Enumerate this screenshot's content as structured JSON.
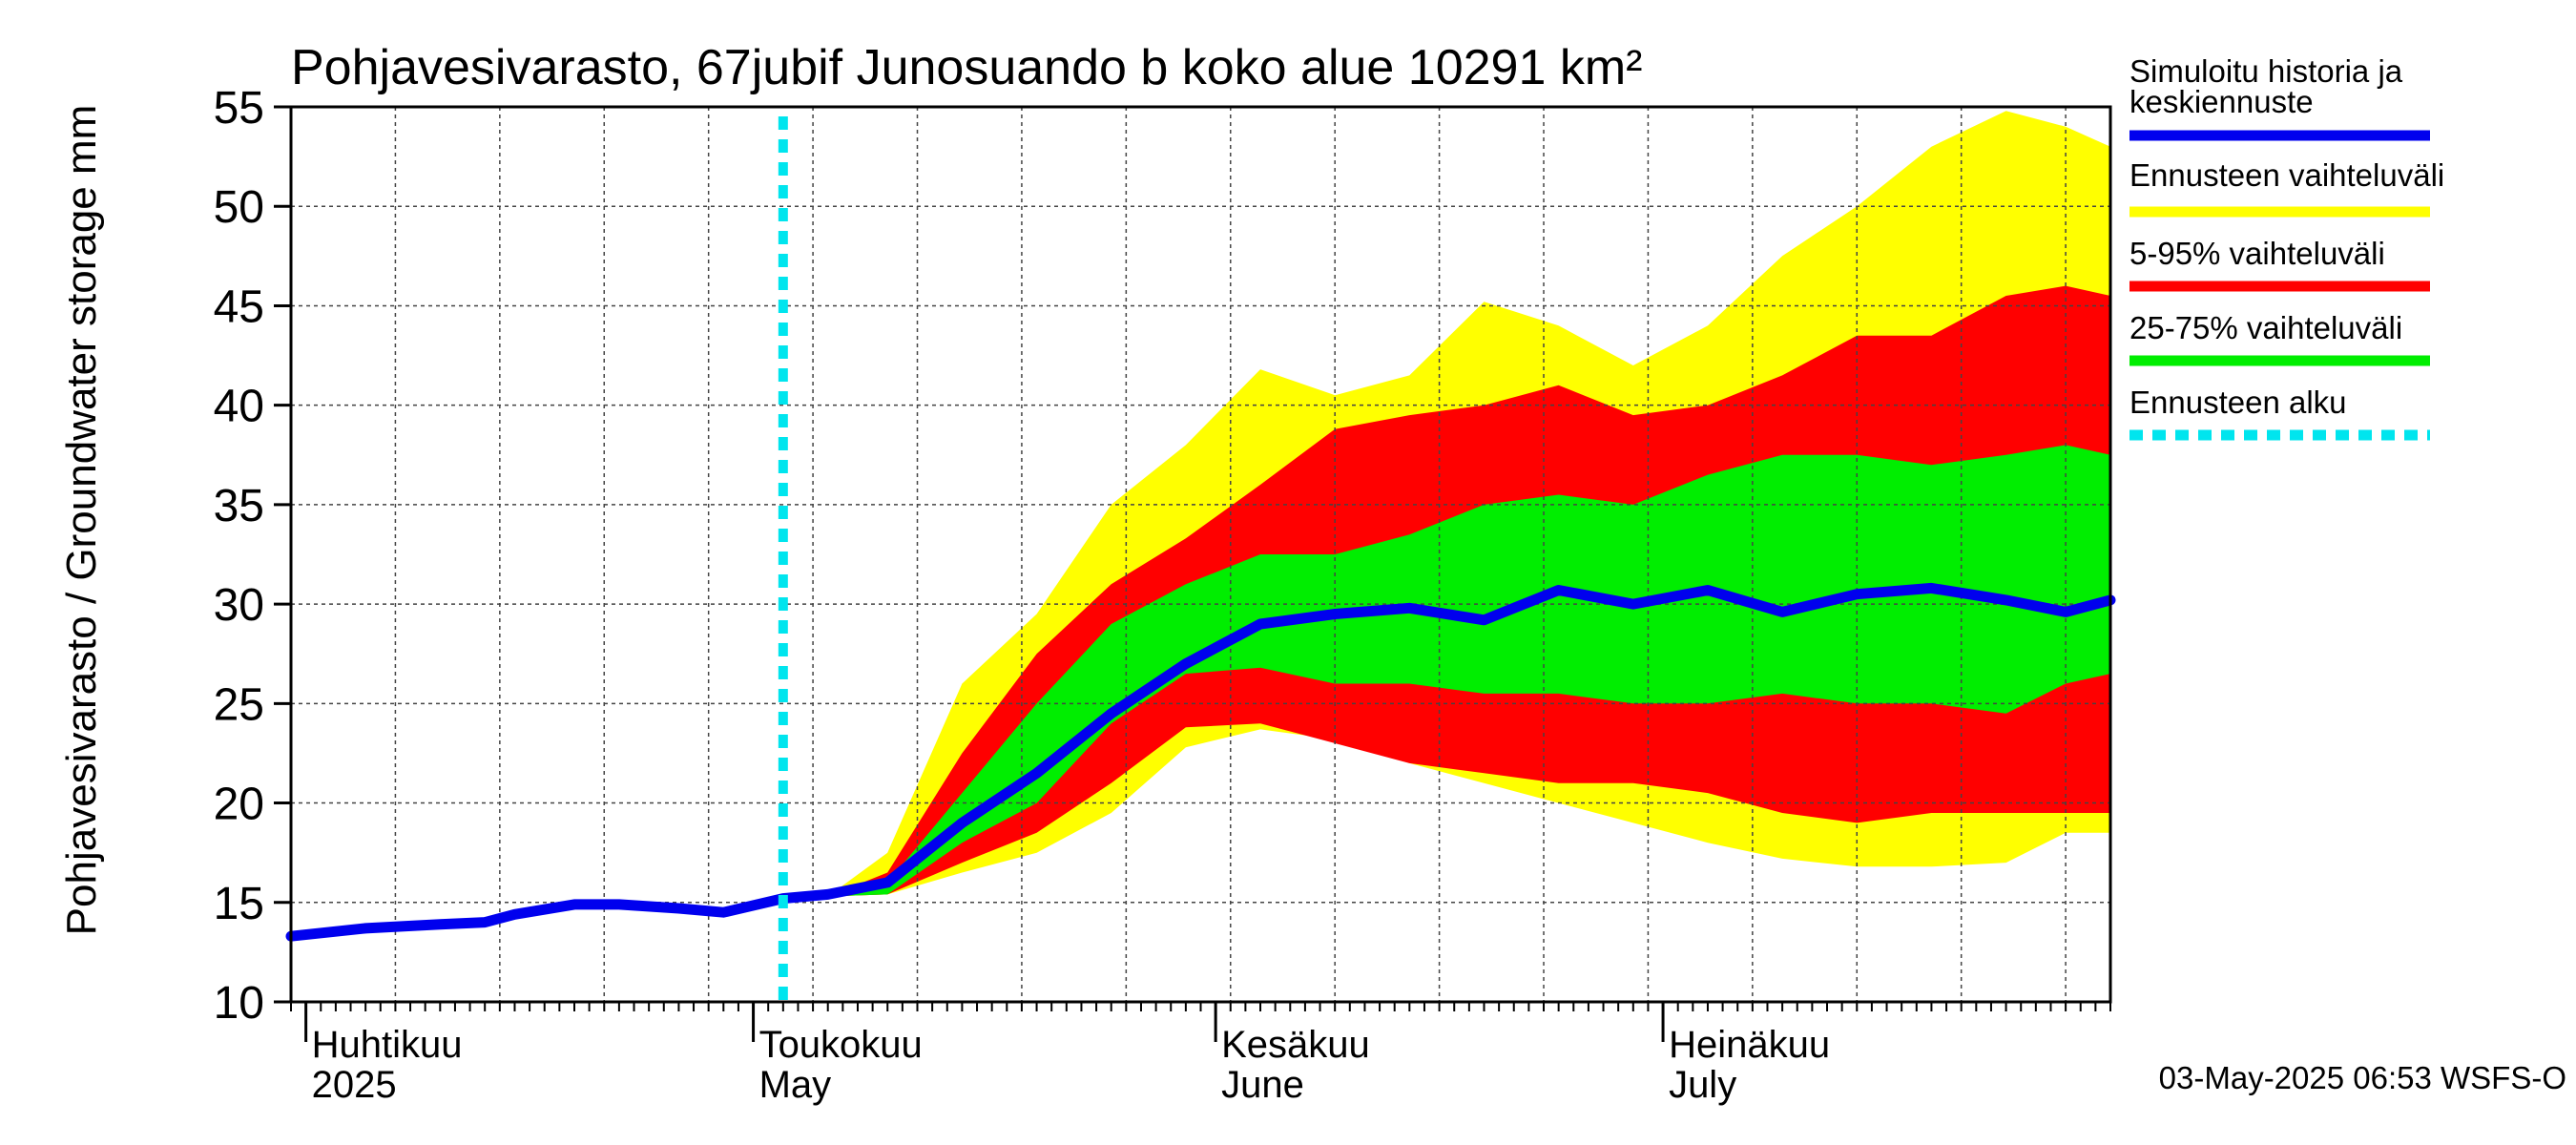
{
  "chart_data": {
    "type": "area",
    "title": "Pohjavesivarasto, 67jubif Junosuando b koko alue 10291 km²",
    "ylabel": "Pohjavesivarasto / Groundwater storage   mm",
    "ylim": [
      10,
      55
    ],
    "yticks": [
      10,
      15,
      20,
      25,
      30,
      35,
      40,
      45,
      50,
      55
    ],
    "xlim": [
      "2025-03-31",
      "2025-07-31"
    ],
    "grid": true,
    "legend_position": "right",
    "forecast_start": "2025-05-03",
    "x_month_labels": [
      {
        "date": "2025-04-01",
        "line1": "Huhtikuu",
        "line2": "2025"
      },
      {
        "date": "2025-05-01",
        "line1": "Toukokuu",
        "line2": "May"
      },
      {
        "date": "2025-06-01",
        "line1": "Kesäkuu",
        "line2": "June"
      },
      {
        "date": "2025-07-01",
        "line1": "Heinäkuu",
        "line2": "July"
      }
    ],
    "history_series": {
      "name": "Simuloitu historia ja keskiennuste",
      "color": "#0000ee",
      "x": [
        "2025-03-31",
        "2025-04-05",
        "2025-04-10",
        "2025-04-13",
        "2025-04-15",
        "2025-04-19",
        "2025-04-22",
        "2025-04-26",
        "2025-04-29",
        "2025-05-03",
        "2025-05-06"
      ],
      "y": [
        13.3,
        13.7,
        13.9,
        14.0,
        14.4,
        14.9,
        14.9,
        14.7,
        14.5,
        15.2,
        15.4
      ]
    },
    "forecast_x": [
      "2025-05-06",
      "2025-05-10",
      "2025-05-15",
      "2025-05-20",
      "2025-05-25",
      "2025-05-30",
      "2025-06-04",
      "2025-06-09",
      "2025-06-14",
      "2025-06-19",
      "2025-06-24",
      "2025-06-29",
      "2025-07-04",
      "2025-07-09",
      "2025-07-14",
      "2025-07-19",
      "2025-07-24",
      "2025-07-28",
      "2025-07-31"
    ],
    "series": [
      {
        "name": "Ennusteen vaihteluväli",
        "color": "#ffff00",
        "role": "band",
        "lower": [
          15.3,
          15.4,
          16.5,
          17.5,
          19.5,
          22.8,
          23.7,
          23.2,
          22.0,
          21.0,
          20.0,
          19.0,
          18.0,
          17.2,
          16.8,
          16.8,
          17.0,
          18.5,
          18.5
        ],
        "upper": [
          15.3,
          17.5,
          26.0,
          29.5,
          35.0,
          38.0,
          41.8,
          40.5,
          41.5,
          45.2,
          44.0,
          42.0,
          44.0,
          47.5,
          50.0,
          53.0,
          54.8,
          54.0,
          53.0
        ]
      },
      {
        "name": "5-95% vaihteluväli",
        "color": "#ff0000",
        "role": "band",
        "lower": [
          15.3,
          15.4,
          17.0,
          18.5,
          21.0,
          23.8,
          24.0,
          23.0,
          22.0,
          21.5,
          21.0,
          21.0,
          20.5,
          19.5,
          19.0,
          19.5,
          19.5,
          19.5,
          19.5
        ],
        "upper": [
          15.3,
          16.5,
          22.5,
          27.5,
          31.0,
          33.3,
          36.0,
          38.8,
          39.5,
          40.0,
          41.0,
          39.5,
          40.0,
          41.5,
          43.5,
          43.5,
          45.5,
          46.0,
          45.5
        ]
      },
      {
        "name": "25-75% vaihteluväli",
        "color": "#00ee00",
        "role": "band",
        "lower": [
          15.3,
          15.4,
          18.0,
          20.0,
          24.0,
          26.5,
          26.8,
          26.0,
          26.0,
          25.5,
          25.5,
          25.0,
          25.0,
          25.5,
          25.0,
          25.0,
          24.5,
          26.0,
          26.5
        ],
        "upper": [
          15.3,
          16.0,
          20.5,
          25.0,
          29.0,
          31.0,
          32.5,
          32.5,
          33.5,
          35.0,
          35.5,
          35.0,
          36.5,
          37.5,
          37.5,
          37.0,
          37.5,
          38.0,
          37.5
        ]
      },
      {
        "name": "Simuloitu historia ja keskiennuste",
        "color": "#0000ee",
        "role": "median",
        "values": [
          15.4,
          16.0,
          19.0,
          21.5,
          24.5,
          27.0,
          29.0,
          29.5,
          29.8,
          29.2,
          30.7,
          30.0,
          30.7,
          29.6,
          30.5,
          30.8,
          30.2,
          29.6,
          30.2
        ]
      },
      {
        "name": "Ennusteen alku",
        "color": "#00e5ee",
        "role": "marker"
      }
    ],
    "legend": [
      {
        "label": "Simuloitu historia ja keskiennuste",
        "color": "#0000ee",
        "style": "solid"
      },
      {
        "label": "Ennusteen vaihteluväli",
        "color": "#ffff00",
        "style": "solid"
      },
      {
        "label": "5-95% vaihteluväli",
        "color": "#ff0000",
        "style": "solid"
      },
      {
        "label": "25-75% vaihteluväli",
        "color": "#00ee00",
        "style": "solid"
      },
      {
        "label": "Ennusteen alku",
        "color": "#00e5ee",
        "style": "dashed"
      }
    ],
    "footer": "03-May-2025 06:53 WSFS-O"
  }
}
